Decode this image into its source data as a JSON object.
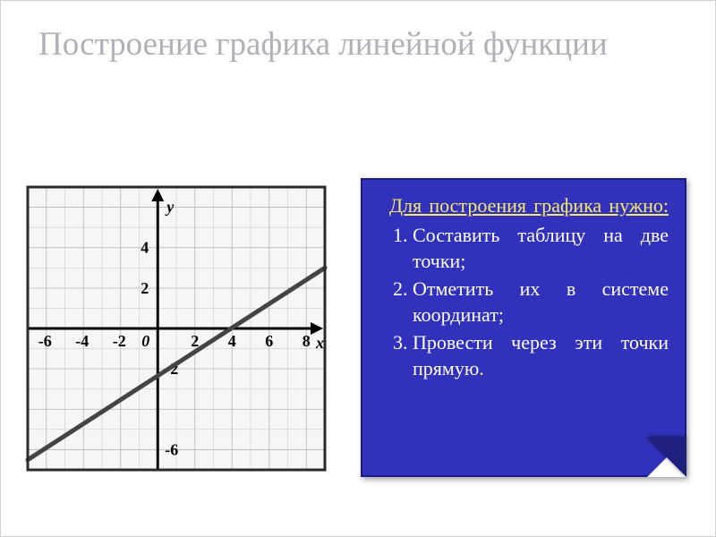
{
  "title": "Построение графика линейной функции",
  "infobox": {
    "bg_color": "#3131bb",
    "intro_color": "#f5ea68",
    "text_color": "#ffffff",
    "fontsize": 22,
    "intro": "Для построения графика нужно:",
    "steps": [
      "Составить таблицу на две точки;",
      "Отметить их в системе координат;",
      "Провести через эти точки прямую"
    ]
  },
  "chart": {
    "type": "line",
    "xlim": [
      -7,
      9
    ],
    "ylim": [
      -7,
      7
    ],
    "xtick_labels": [
      -6,
      -4,
      -2,
      2,
      4,
      6,
      8
    ],
    "ytick_labels_pos": [
      2,
      4
    ],
    "ytick_labels_neg": [
      -2,
      -6
    ],
    "origin_label": "0",
    "x_axis_label": "x",
    "y_axis_label": "y",
    "grid_major_step": 2,
    "grid_minor_step": 1,
    "grid_color": "#cccccc",
    "axis_color": "#000000",
    "background_color": "#f6f6f6",
    "border_color": "#2a2a2a",
    "line": {
      "color": "#444444",
      "width": 5,
      "points": [
        [
          -7,
          -6.5
        ],
        [
          9,
          3
        ]
      ]
    },
    "label_fontsize": 18,
    "axis_fontstyle": "italic",
    "axis_fontweight": "normal"
  }
}
